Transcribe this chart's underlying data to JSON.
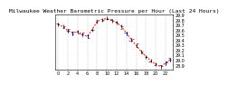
{
  "title": "Milwaukee Weather Barometric Pressure per Hour (Last 24 Hours)",
  "background_color": "#ffffff",
  "grid_color": "#999999",
  "line_color": "#ff0000",
  "marker_color": "#000000",
  "blue_marker_color": "#0000cc",
  "hours": [
    0,
    1,
    2,
    3,
    4,
    5,
    6,
    7,
    8,
    9,
    10,
    11,
    12,
    13,
    14,
    15,
    16,
    17,
    18,
    19,
    20,
    21,
    22,
    23
  ],
  "pressure": [
    29.72,
    29.68,
    29.6,
    29.55,
    29.58,
    29.52,
    29.48,
    29.62,
    29.78,
    29.82,
    29.84,
    29.8,
    29.76,
    29.68,
    29.55,
    29.42,
    29.3,
    29.18,
    29.08,
    29.0,
    28.92,
    28.88,
    28.95,
    29.02
  ],
  "ylim": [
    28.82,
    29.92
  ],
  "yticks": [
    28.9,
    29.0,
    29.1,
    29.2,
    29.3,
    29.4,
    29.5,
    29.6,
    29.7,
    29.8,
    29.9
  ],
  "ytick_labels": [
    "28.9",
    "29.0",
    "29.1",
    "29.2",
    "29.3",
    "29.4",
    "29.5",
    "29.6",
    "29.7",
    "29.8",
    "29.9"
  ],
  "xticks": [
    0,
    2,
    4,
    6,
    8,
    10,
    12,
    14,
    16,
    18,
    20,
    22
  ],
  "xtick_labels": [
    "0",
    "2",
    "4",
    "6",
    "8",
    "10",
    "12",
    "14",
    "16",
    "18",
    "20",
    "22"
  ],
  "title_fontsize": 4.5,
  "tick_fontsize": 3.5,
  "vgrid_positions": [
    0,
    2,
    4,
    6,
    8,
    10,
    12,
    14,
    16,
    18,
    20,
    22
  ]
}
